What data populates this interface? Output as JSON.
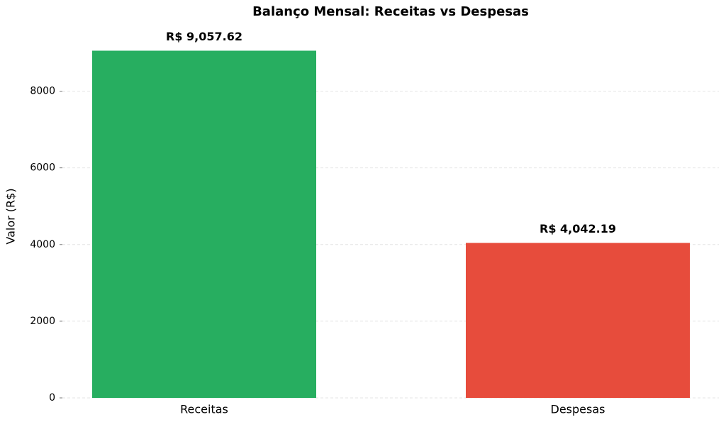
{
  "chart_data": {
    "type": "bar",
    "title": "Balanço Mensal: Receitas vs Despesas",
    "y_label": "Valor (R$)",
    "categories": [
      "Receitas",
      "Despesas"
    ],
    "values": [
      9057.62,
      4042.19
    ],
    "value_labels": [
      "R$ 9,057.62",
      "R$ 4,042.19"
    ],
    "colors": [
      "#27ae60",
      "#e74c3c"
    ],
    "ylim": [
      0,
      9510.5
    ],
    "yticks": [
      0,
      2000,
      4000,
      6000,
      8000
    ],
    "grid": true
  }
}
